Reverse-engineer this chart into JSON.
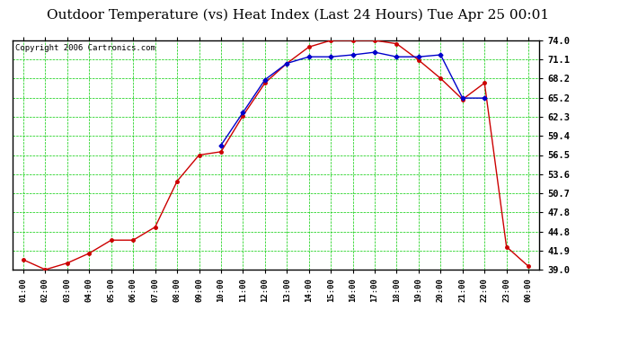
{
  "title": "Outdoor Temperature (vs) Heat Index (Last 24 Hours) Tue Apr 25 00:01",
  "copyright": "Copyright 2006 Cartronics.com",
  "x_labels": [
    "01:00",
    "02:00",
    "03:00",
    "04:00",
    "05:00",
    "06:00",
    "07:00",
    "08:00",
    "09:00",
    "10:00",
    "11:00",
    "12:00",
    "13:00",
    "14:00",
    "15:00",
    "16:00",
    "17:00",
    "18:00",
    "19:00",
    "20:00",
    "21:00",
    "22:00",
    "23:00",
    "00:00"
  ],
  "temp_red": [
    40.5,
    39.0,
    40.0,
    41.5,
    43.5,
    43.5,
    45.5,
    52.5,
    56.5,
    57.0,
    62.5,
    67.5,
    70.5,
    73.0,
    74.0,
    74.0,
    74.0,
    73.5,
    71.0,
    68.2,
    65.0,
    67.5,
    42.5,
    39.5
  ],
  "heat_blue": [
    null,
    null,
    null,
    null,
    null,
    null,
    null,
    null,
    null,
    58.0,
    63.0,
    68.0,
    70.5,
    71.5,
    71.5,
    71.8,
    72.2,
    71.5,
    71.5,
    71.8,
    65.2,
    65.2,
    null,
    null
  ],
  "y_ticks": [
    39.0,
    41.9,
    44.8,
    47.8,
    50.7,
    53.6,
    56.5,
    59.4,
    62.3,
    65.2,
    68.2,
    71.1,
    74.0
  ],
  "bg_color": "#ffffff",
  "plot_bg": "#ffffff",
  "grid_color": "#00cc00",
  "red_color": "#cc0000",
  "blue_color": "#0000cc",
  "title_fontsize": 11,
  "copyright_fontsize": 6.5,
  "ylim_min": 39.0,
  "ylim_max": 74.0
}
